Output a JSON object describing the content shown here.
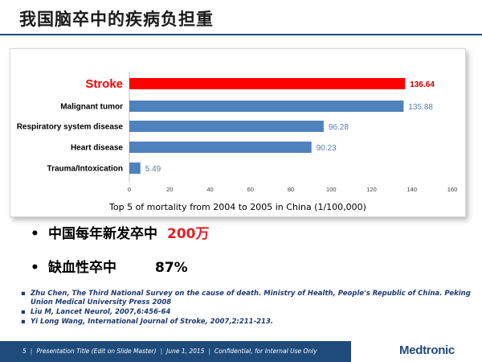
{
  "slide": {
    "title": "我国脑卒中的疾病负担重"
  },
  "chart_data": {
    "type": "bar",
    "orientation": "horizontal",
    "categories": [
      "Stroke",
      "Malignant tumor",
      "Respiratory system disease",
      "Heart disease",
      "Trauma/Intoxication"
    ],
    "values": [
      136.64,
      135.88,
      96.28,
      90.23,
      5.49
    ],
    "value_labels": [
      "136.64",
      "135.88",
      "96.28",
      "90.23",
      "5.49"
    ],
    "highlight_index": 0,
    "xlim": [
      0,
      160
    ],
    "xticks": [
      "0",
      "20",
      "40",
      "60",
      "80",
      "100",
      "120",
      "140",
      "160"
    ],
    "caption": "Top 5 of mortality from 2004 to 2005 in China (1/100,000)",
    "colors": {
      "bar": "#4f81bd",
      "highlight": "#ff0000",
      "label": "#5b7fb0",
      "highlight_label": "#c00000",
      "grid": "#d9d9d9"
    },
    "grid": false
  },
  "bullets": [
    {
      "dot": "•",
      "text": "中国每年新发卒中",
      "value": "200万"
    },
    {
      "dot": "•",
      "text": "缺血性卒中",
      "value": "87%"
    }
  ],
  "references": [
    "Zhu Chen, The Third National Survey on the cause of death. Ministry of Health, People's Republic of China. Peking Union Medical University Press 2008",
    "Liu M, Lancet Neurol, 2007,6:456-64",
    "Yi Long Wang, International Journal of Stroke, 2007,2:211-213."
  ],
  "reference_bullet": "▪",
  "footer": {
    "page_number": "5",
    "presentation_title": "Presentation Title (Edit on Slide Master)",
    "date": "June 1, 2015",
    "confidentiality": "Confidential, for Internal Use Only",
    "separator": "|",
    "logo_text": "Medtronic"
  }
}
